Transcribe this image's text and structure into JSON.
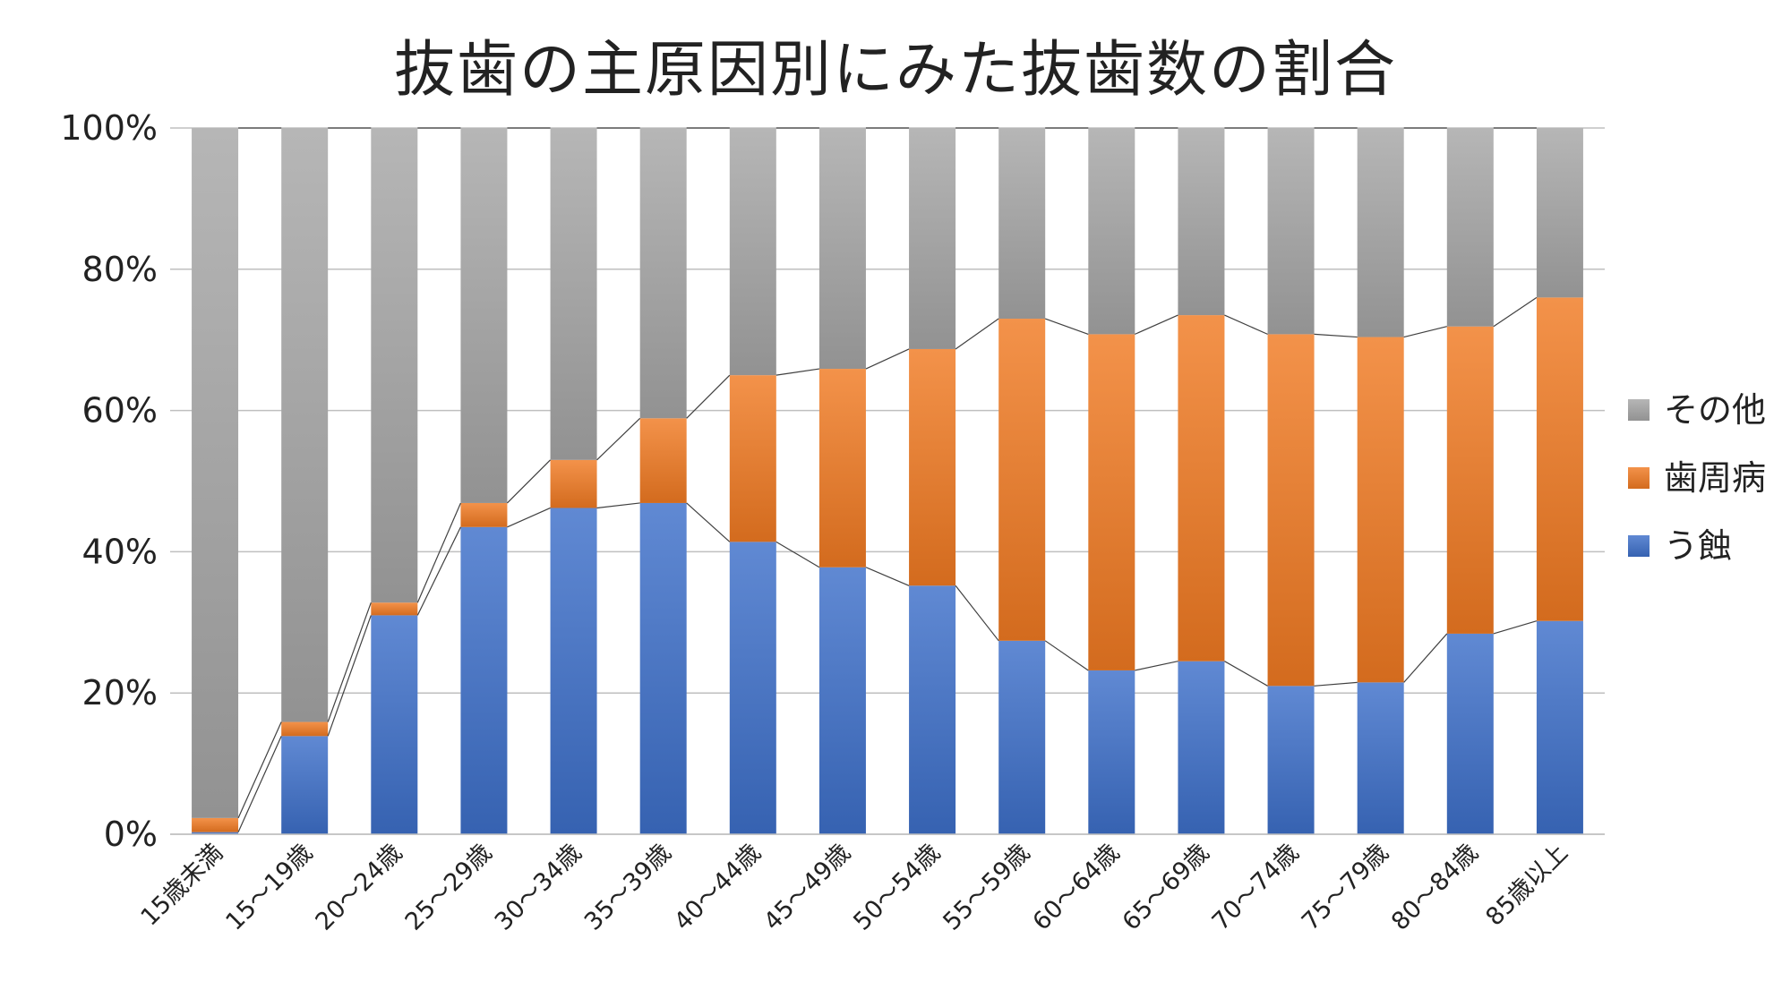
{
  "chart_data": {
    "type": "bar",
    "stacked": "percent",
    "title": "抜歯の主原因別にみた抜歯数の割合",
    "categories": [
      "15歳未満",
      "15～19歳",
      "20～24歳",
      "25～29歳",
      "30～34歳",
      "35～39歳",
      "40～44歳",
      "45～49歳",
      "50～54歳",
      "55～59歳",
      "60～64歳",
      "65～69歳",
      "70～74歳",
      "75～79歳",
      "80～84歳",
      "85歳以上"
    ],
    "series": [
      {
        "name": "う蝕",
        "color": "#3d6fc9",
        "values": [
          0.3,
          13.9,
          31.0,
          43.5,
          46.2,
          46.9,
          41.4,
          37.8,
          35.2,
          27.4,
          23.2,
          24.5,
          21.0,
          21.5,
          28.4,
          30.2
        ]
      },
      {
        "name": "歯周病",
        "color": "#f07a22",
        "values": [
          2.0,
          2.0,
          1.8,
          3.4,
          6.8,
          12.0,
          23.6,
          28.1,
          33.5,
          45.6,
          47.6,
          49.0,
          49.8,
          48.9,
          43.5,
          45.8
        ]
      },
      {
        "name": "その他",
        "color": "#a6a6a6",
        "values": [
          97.7,
          84.1,
          67.2,
          53.1,
          47.0,
          41.1,
          35.0,
          34.1,
          31.3,
          27.0,
          29.2,
          26.5,
          29.2,
          29.6,
          28.1,
          24.0
        ]
      }
    ],
    "legend_order": [
      "その他",
      "歯周病",
      "う蝕"
    ],
    "yticks": [
      "0%",
      "20%",
      "40%",
      "60%",
      "80%",
      "100%"
    ],
    "ylim": [
      0,
      100
    ],
    "grid": true,
    "series_lines": true,
    "legend_position": "right"
  }
}
